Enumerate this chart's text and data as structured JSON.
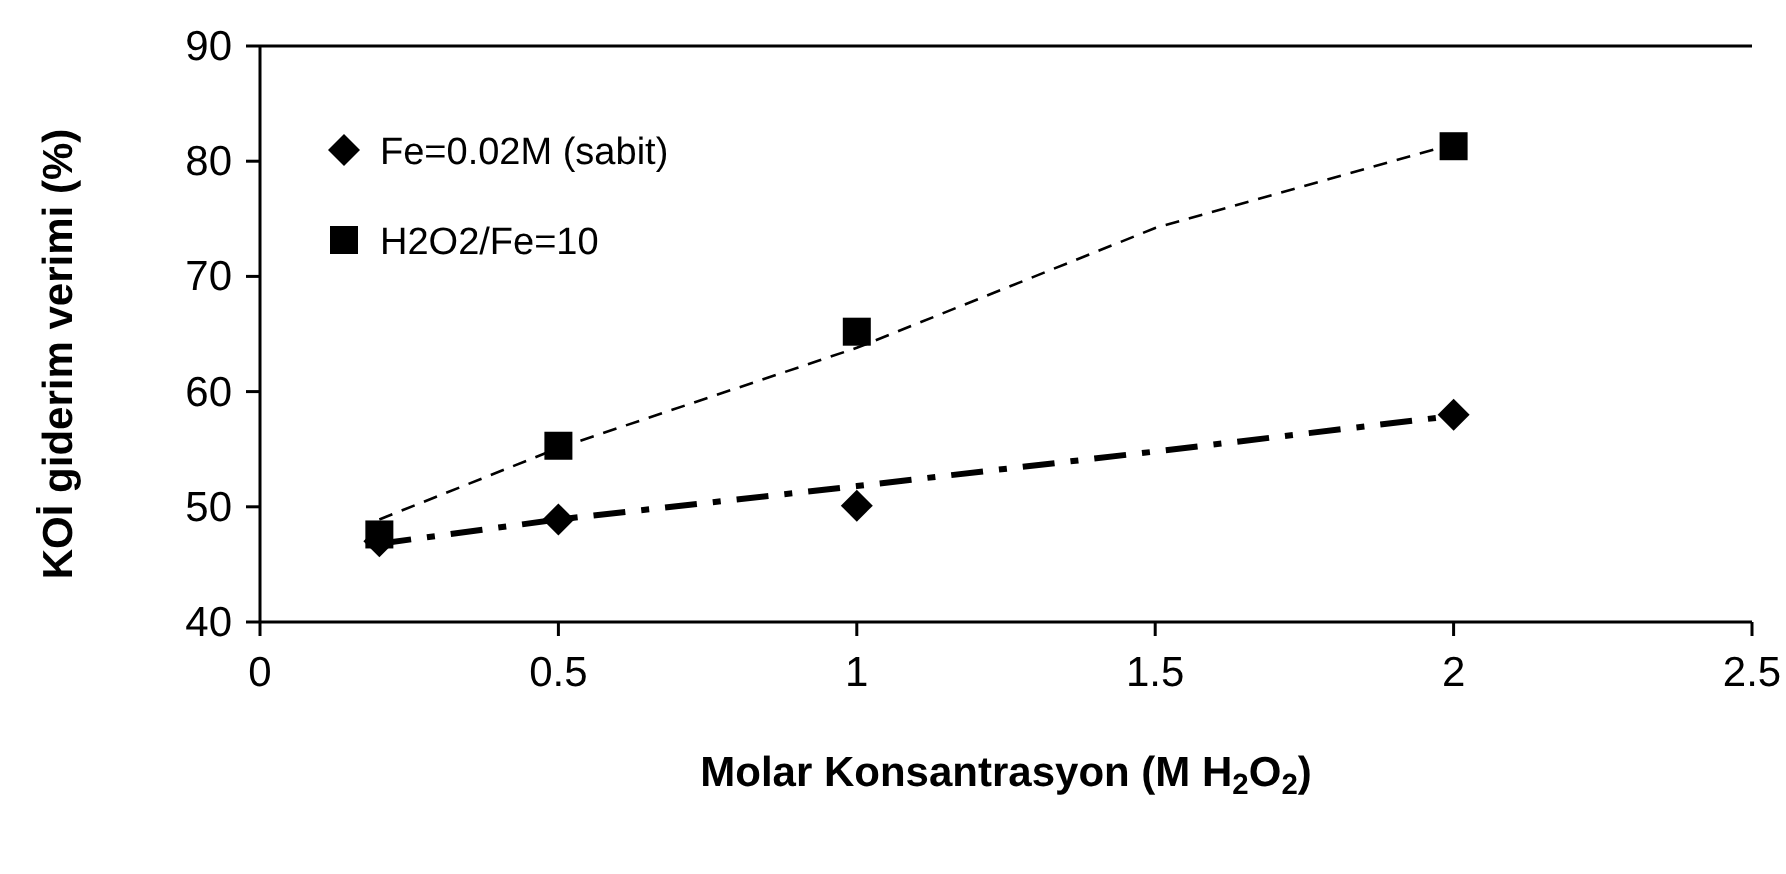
{
  "chart_data": {
    "type": "scatter",
    "xlabel": "Molar Konsantrasyon (M H$_{2}$O$_{2}$)",
    "ylabel": "KOİ giderim verimi (%)",
    "xlim": [
      0,
      2.5
    ],
    "xticks": [
      0,
      0.5,
      1,
      1.5,
      2,
      2.5
    ],
    "ylim": [
      40,
      90
    ],
    "yticks": [
      40,
      50,
      60,
      70,
      80,
      90
    ],
    "grid": false,
    "legend": "top left",
    "series": [
      {
        "name": "Fe=0.02M (sabit)",
        "color": "#000000",
        "marker": "diamond",
        "x": [
          0.2,
          0.5,
          1,
          2
        ],
        "values": [
          47,
          48.9,
          50.1,
          58
        ]
      },
      {
        "name": "H2O2/Fe=10",
        "color": "#000000",
        "marker": "square",
        "x": [
          0.2,
          0.5,
          1,
          2
        ],
        "values": [
          47.6,
          55.3,
          65.2,
          81.3
        ]
      },
      {
        "type": "line",
        "color": "#000000",
        "marker": "none",
        "line_style": "dashdot",
        "x": [
          0.2,
          0.5,
          1,
          1.5,
          2
        ],
        "values": [
          46.8,
          48.9,
          51.8,
          54.8,
          57.9
        ]
      },
      {
        "type": "line",
        "color": "#000000",
        "marker": "none",
        "line_style": "dashed",
        "x": [
          0.2,
          0.5,
          1,
          1.5,
          2
        ],
        "values": [
          48.9,
          55.1,
          63.8,
          74.2,
          81.5
        ]
      }
    ]
  }
}
